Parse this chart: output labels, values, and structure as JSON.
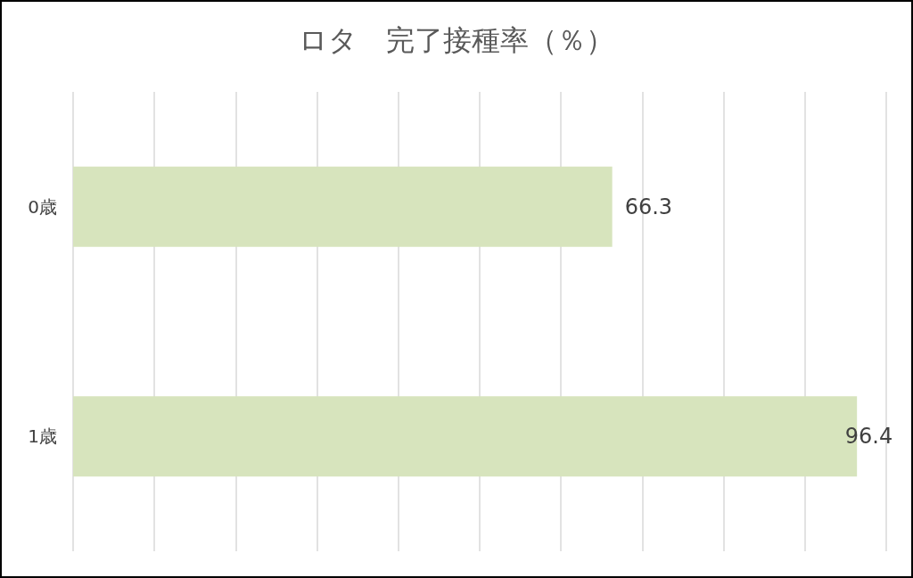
{
  "chart_data": {
    "type": "bar",
    "title": "ロタ　完了接種率（％）",
    "orientation": "horizontal",
    "categories": [
      "0歳",
      "1歳"
    ],
    "values": [
      66.3,
      96.4
    ],
    "color": "#d7e4bd",
    "xlim": [
      0,
      100
    ],
    "xticks": [
      {
        "value": 0,
        "label": null
      },
      {
        "value": 10,
        "label": null
      },
      {
        "value": 20,
        "label": null
      },
      {
        "value": 30,
        "label": null
      },
      {
        "value": 40,
        "label": null
      },
      {
        "value": 50,
        "label": null
      },
      {
        "value": 60,
        "label": null
      },
      {
        "value": 70,
        "label": null
      },
      {
        "value": 80,
        "label": null
      },
      {
        "value": 90,
        "label": null
      },
      {
        "value": 100,
        "label": null
      }
    ],
    "tick_labels": "y",
    "grid": "x",
    "data_labels": true
  }
}
